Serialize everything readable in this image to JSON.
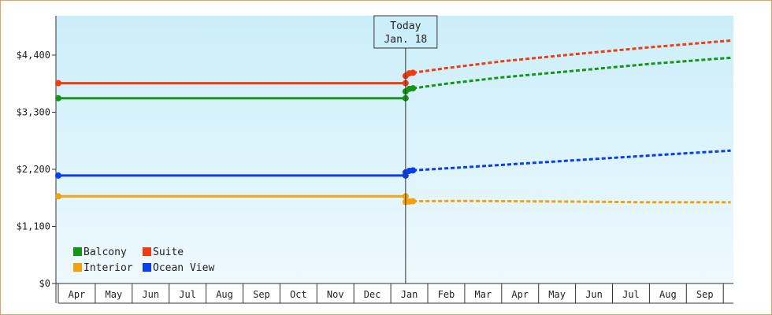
{
  "chart_data": {
    "type": "line",
    "title": "",
    "xlabel": "",
    "ylabel": "",
    "ylim": [
      0,
      4400
    ],
    "yticks": [
      {
        "value": 0,
        "label": "$0"
      },
      {
        "value": 1100,
        "label": "$1,100"
      },
      {
        "value": 2200,
        "label": "$2,200"
      },
      {
        "value": 3300,
        "label": "$3,300"
      },
      {
        "value": 4400,
        "label": "$4,400"
      }
    ],
    "x_months": [
      "Apr",
      "May",
      "Jun",
      "Jul",
      "Aug",
      "Sep",
      "Oct",
      "Nov",
      "Dec",
      "Jan",
      "Feb",
      "Mar",
      "Apr",
      "May",
      "Jun",
      "Jul",
      "Aug",
      "Sep"
    ],
    "today": {
      "label_line1": "Today",
      "label_line2": "Jan. 18",
      "x": 9.4
    },
    "x_end": 18.2,
    "legend_position": "bottom-left",
    "series": [
      {
        "name": "Balcony",
        "color": "#149614",
        "history": [
          [
            0,
            3570
          ],
          [
            9.4,
            3570
          ]
        ],
        "history_end": [
          [
            9.4,
            3700
          ],
          [
            9.5,
            3750
          ],
          [
            9.6,
            3760
          ]
        ],
        "forecast": [
          [
            9.6,
            3760
          ],
          [
            10.5,
            3850
          ],
          [
            12,
            3970
          ],
          [
            14,
            4100
          ],
          [
            16,
            4230
          ],
          [
            18.2,
            4350
          ]
        ]
      },
      {
        "name": "Suite",
        "color": "#f03c0f",
        "history": [
          [
            0,
            3860
          ],
          [
            9.4,
            3860
          ]
        ],
        "history_end": [
          [
            9.4,
            4000
          ],
          [
            9.5,
            4050
          ],
          [
            9.6,
            4060
          ]
        ],
        "forecast": [
          [
            9.6,
            4060
          ],
          [
            10.5,
            4150
          ],
          [
            12,
            4280
          ],
          [
            14,
            4420
          ],
          [
            16,
            4550
          ],
          [
            18.2,
            4680
          ]
        ]
      },
      {
        "name": "Interior",
        "color": "#f2a10a",
        "history": [
          [
            0,
            1680
          ],
          [
            9.4,
            1680
          ]
        ],
        "history_end": [
          [
            9.4,
            1570
          ],
          [
            9.5,
            1580
          ],
          [
            9.6,
            1585
          ]
        ],
        "forecast": [
          [
            9.6,
            1585
          ],
          [
            11,
            1590
          ],
          [
            13.5,
            1580
          ],
          [
            14.5,
            1575
          ],
          [
            16,
            1565
          ],
          [
            18.2,
            1565
          ]
        ]
      },
      {
        "name": "Ocean View",
        "color": "#0a3cf0",
        "history": [
          [
            0,
            2080
          ],
          [
            9.4,
            2080
          ]
        ],
        "history_end": [
          [
            9.4,
            2140
          ],
          [
            9.5,
            2170
          ],
          [
            9.6,
            2180
          ]
        ],
        "forecast": [
          [
            9.6,
            2180
          ],
          [
            11,
            2240
          ],
          [
            13,
            2330
          ],
          [
            15,
            2420
          ],
          [
            17,
            2510
          ],
          [
            18.2,
            2560
          ]
        ]
      }
    ]
  }
}
